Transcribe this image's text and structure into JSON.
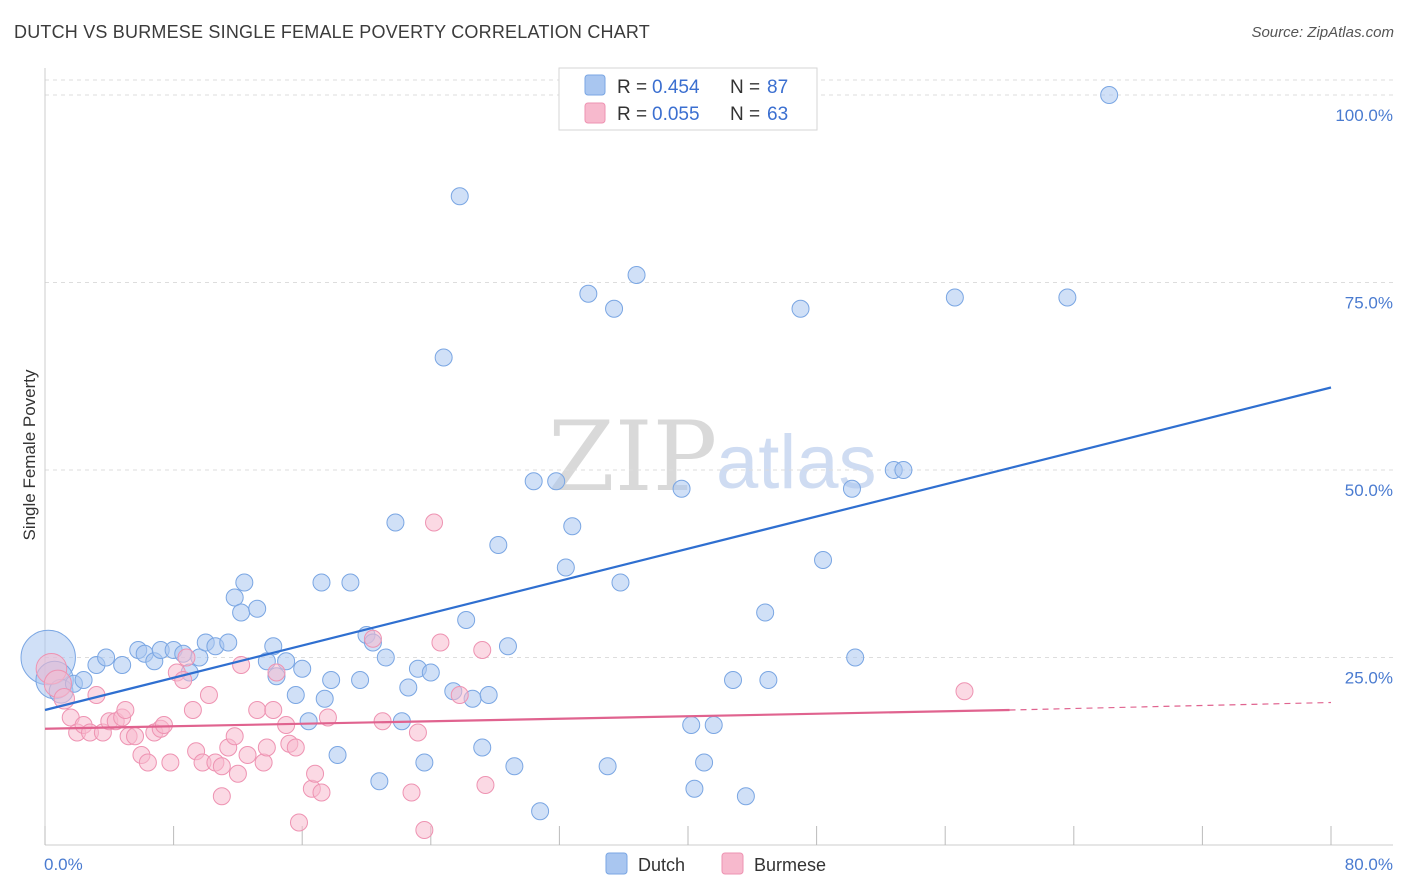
{
  "title": "DUTCH VS BURMESE SINGLE FEMALE POVERTY CORRELATION CHART",
  "source": "Source: ZipAtlas.com",
  "watermark": {
    "zip": "ZIP",
    "atlas": "atlas"
  },
  "colors": {
    "dutch_fill": "#a9c6f0",
    "dutch_stroke": "#7aa6e3",
    "dutch_line": "#2f6fd0",
    "burmese_fill": "#f7b9cd",
    "burmese_stroke": "#ee93b2",
    "burmese_line": "#e0638f",
    "tick_text": "#4a7bd0",
    "grid": "#dddddd"
  },
  "legend": {
    "rows": [
      {
        "r_label": "R =",
        "r_value": "0.454",
        "n_label": "N =",
        "n_value": "87"
      },
      {
        "r_label": "R =",
        "r_value": "0.055",
        "n_label": "N =",
        "n_value": "63"
      }
    ]
  },
  "chart_data": {
    "type": "scatter",
    "title": "DUTCH VS BURMESE SINGLE FEMALE POVERTY CORRELATION CHART",
    "xlabel": "",
    "ylabel": "Single Female Poverty",
    "xlim": [
      0,
      80
    ],
    "ylim": [
      0,
      102
    ],
    "x_tick_labels": [
      "0.0%",
      "80.0%"
    ],
    "y_ticks": [
      25,
      50,
      75,
      100
    ],
    "y_tick_labels": [
      "25.0%",
      "50.0%",
      "75.0%",
      "100.0%"
    ],
    "grid": true,
    "legend_position": "top-center",
    "series": [
      {
        "name": "Dutch",
        "r": 0.454,
        "n": 87,
        "trend": {
          "x0": 0,
          "y0": 18,
          "x1": 80,
          "y1": 61
        },
        "points": [
          [
            0.2,
            25,
            3.2
          ],
          [
            0.6,
            22,
            2.2
          ],
          [
            1,
            20.5,
            1.4
          ],
          [
            1.8,
            21.5,
            1
          ],
          [
            2.4,
            22,
            1
          ],
          [
            3.2,
            24,
            1
          ],
          [
            3.8,
            25,
            1
          ],
          [
            4.8,
            24,
            1
          ],
          [
            5.8,
            26,
            1
          ],
          [
            6.2,
            25.5,
            1
          ],
          [
            6.8,
            24.5,
            1
          ],
          [
            7.2,
            26,
            1
          ],
          [
            8,
            26,
            1
          ],
          [
            8.6,
            25.5,
            1
          ],
          [
            9,
            23,
            1
          ],
          [
            9.6,
            25,
            1
          ],
          [
            10,
            27,
            1
          ],
          [
            10.6,
            26.5,
            1
          ],
          [
            11.4,
            27,
            1
          ],
          [
            11.8,
            33,
            1
          ],
          [
            12.2,
            31,
            1
          ],
          [
            12.4,
            35,
            1
          ],
          [
            13.2,
            31.5,
            1
          ],
          [
            13.8,
            24.5,
            1
          ],
          [
            14.2,
            26.5,
            1
          ],
          [
            14.4,
            22.5,
            1
          ],
          [
            15,
            24.5,
            1
          ],
          [
            15.6,
            20,
            1
          ],
          [
            16,
            23.5,
            1
          ],
          [
            16.4,
            16.5,
            1
          ],
          [
            17.2,
            35,
            1
          ],
          [
            17.4,
            19.5,
            1
          ],
          [
            17.8,
            22,
            1
          ],
          [
            18.2,
            12,
            1
          ],
          [
            19,
            35,
            1
          ],
          [
            19.6,
            22,
            1
          ],
          [
            20,
            28,
            1
          ],
          [
            20.4,
            27,
            1
          ],
          [
            20.8,
            8.5,
            1
          ],
          [
            21.2,
            25,
            1
          ],
          [
            21.8,
            43,
            1
          ],
          [
            22.2,
            16.5,
            1
          ],
          [
            22.6,
            21,
            1
          ],
          [
            23.2,
            23.5,
            1
          ],
          [
            23.6,
            11,
            1
          ],
          [
            24,
            23,
            1
          ],
          [
            24.8,
            65,
            1
          ],
          [
            25.4,
            20.5,
            1
          ],
          [
            25.8,
            86.5,
            1
          ],
          [
            26.2,
            30,
            1
          ],
          [
            26.6,
            19.5,
            1
          ],
          [
            27.2,
            13,
            1
          ],
          [
            27.6,
            20,
            1
          ],
          [
            28.2,
            40,
            1
          ],
          [
            28.8,
            26.5,
            1
          ],
          [
            29.2,
            10.5,
            1
          ],
          [
            30.4,
            48.5,
            1
          ],
          [
            30.8,
            4.5,
            1
          ],
          [
            31.8,
            48.5,
            1
          ],
          [
            32.4,
            37,
            1
          ],
          [
            32.8,
            42.5,
            1
          ],
          [
            33.8,
            73.5,
            1
          ],
          [
            35,
            10.5,
            1
          ],
          [
            35.4,
            71.5,
            1
          ],
          [
            35.8,
            35,
            1
          ],
          [
            36.8,
            76,
            1
          ],
          [
            39.6,
            47.5,
            1
          ],
          [
            40.2,
            16,
            1
          ],
          [
            40.4,
            7.5,
            1
          ],
          [
            41,
            11,
            1
          ],
          [
            41.6,
            16,
            1
          ],
          [
            42.8,
            22,
            1
          ],
          [
            43.6,
            6.5,
            1
          ],
          [
            44.8,
            31,
            1
          ],
          [
            45,
            22,
            1
          ],
          [
            47,
            71.5,
            1
          ],
          [
            48.4,
            38,
            1
          ],
          [
            50.2,
            47.5,
            1
          ],
          [
            50.4,
            25,
            1
          ],
          [
            52.8,
            50,
            1
          ],
          [
            53.4,
            50,
            1
          ],
          [
            56.6,
            73,
            1
          ],
          [
            63.6,
            73,
            1
          ],
          [
            66.2,
            100,
            1
          ]
        ]
      },
      {
        "name": "Burmese",
        "r": 0.055,
        "n": 63,
        "trend": {
          "x0": 0,
          "y0": 15.5,
          "x1": 60,
          "y1": 18,
          "dash_x1": 80,
          "dash_y1": 19
        },
        "points": [
          [
            0.4,
            23.5,
            1.8
          ],
          [
            0.8,
            21.5,
            1.6
          ],
          [
            1.2,
            19.5,
            1.2
          ],
          [
            1.6,
            17,
            1
          ],
          [
            2,
            15,
            1
          ],
          [
            2.4,
            16,
            1
          ],
          [
            2.8,
            15,
            1
          ],
          [
            3.2,
            20,
            1
          ],
          [
            3.6,
            15,
            1
          ],
          [
            4,
            16.5,
            1
          ],
          [
            4.4,
            16.5,
            1
          ],
          [
            4.8,
            17,
            1
          ],
          [
            5,
            18,
            1
          ],
          [
            5.2,
            14.5,
            1
          ],
          [
            5.6,
            14.5,
            1
          ],
          [
            6,
            12,
            1
          ],
          [
            6.4,
            11,
            1
          ],
          [
            6.8,
            15,
            1
          ],
          [
            7.2,
            15.5,
            1
          ],
          [
            7.4,
            16,
            1
          ],
          [
            7.8,
            11,
            1
          ],
          [
            8.2,
            23,
            1
          ],
          [
            8.6,
            22,
            1
          ],
          [
            8.8,
            25,
            1
          ],
          [
            9.2,
            18,
            1
          ],
          [
            9.4,
            12.5,
            1
          ],
          [
            9.8,
            11,
            1
          ],
          [
            10.2,
            20,
            1
          ],
          [
            10.6,
            11,
            1
          ],
          [
            11,
            10.5,
            1
          ],
          [
            11,
            6.5,
            1
          ],
          [
            11.4,
            13,
            1
          ],
          [
            11.8,
            14.5,
            1
          ],
          [
            12,
            9.5,
            1
          ],
          [
            12.2,
            24,
            1
          ],
          [
            12.6,
            12,
            1
          ],
          [
            13.2,
            18,
            1
          ],
          [
            13.6,
            11,
            1
          ],
          [
            13.8,
            13,
            1
          ],
          [
            14.2,
            18,
            1
          ],
          [
            14.4,
            23,
            1
          ],
          [
            15,
            16,
            1
          ],
          [
            15.2,
            13.5,
            1
          ],
          [
            15.6,
            13,
            1
          ],
          [
            15.8,
            3,
            1
          ],
          [
            16.6,
            7.5,
            1
          ],
          [
            16.8,
            9.5,
            1
          ],
          [
            17.2,
            7,
            1
          ],
          [
            17.6,
            17,
            1
          ],
          [
            20.4,
            27.5,
            1
          ],
          [
            21,
            16.5,
            1
          ],
          [
            22.8,
            7,
            1
          ],
          [
            23.2,
            15,
            1
          ],
          [
            23.6,
            2,
            1
          ],
          [
            24.2,
            43,
            1
          ],
          [
            24.6,
            27,
            1
          ],
          [
            25.8,
            20,
            1
          ],
          [
            27.2,
            26,
            1
          ],
          [
            27.4,
            8,
            1
          ],
          [
            57.2,
            20.5,
            1
          ]
        ]
      }
    ]
  },
  "bottom_legend": [
    {
      "label": "Dutch"
    },
    {
      "label": "Burmese"
    }
  ]
}
